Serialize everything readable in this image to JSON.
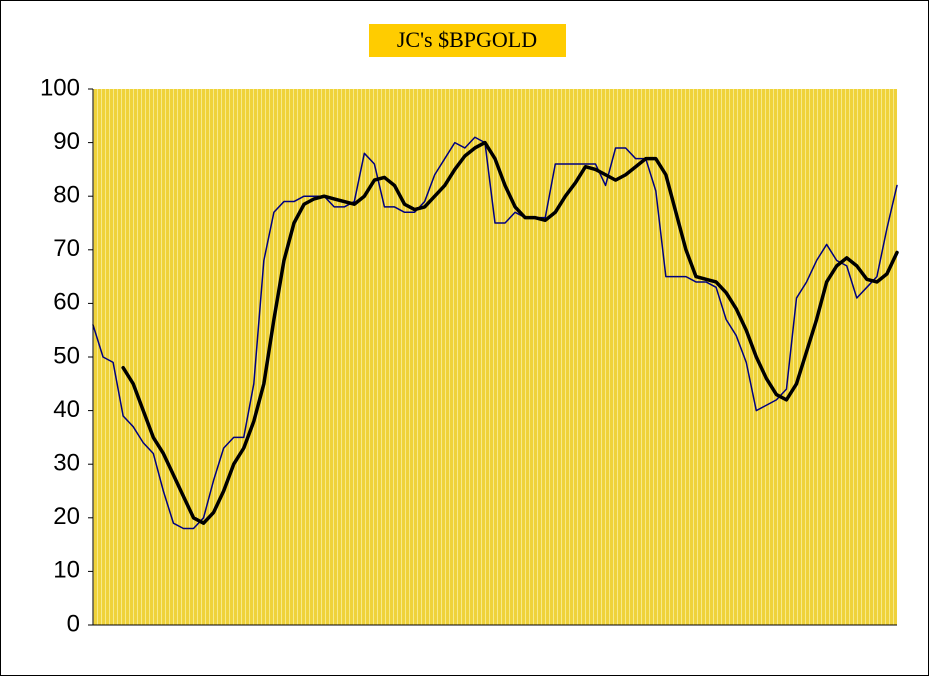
{
  "chart_data": {
    "type": "line",
    "title": "JC's $BPGOLD",
    "series": [
      {
        "color": "#000080",
        "width": 1.5,
        "values": [
          56,
          50,
          49,
          39,
          37,
          34,
          32,
          25,
          19,
          18,
          18,
          20,
          27,
          33,
          35,
          35,
          45,
          68,
          77,
          79,
          79,
          80,
          80,
          80,
          78,
          78,
          79,
          88,
          86,
          78,
          78,
          77,
          77,
          79,
          84,
          87,
          90,
          89,
          91,
          90,
          75,
          75,
          77,
          76,
          76,
          76,
          86,
          86,
          86,
          86,
          86,
          82,
          89,
          89,
          87,
          87,
          81,
          65,
          65,
          65,
          64,
          64,
          63,
          57,
          54,
          49,
          40,
          41,
          42,
          44,
          61,
          64,
          68,
          71,
          68,
          67,
          61,
          63,
          65,
          74,
          82
        ]
      },
      {
        "color": "#000000",
        "width": 3.5,
        "values": [
          null,
          null,
          null,
          48,
          45,
          40,
          35,
          32,
          28,
          24,
          20,
          19,
          21,
          25,
          30,
          33,
          38,
          45,
          57,
          68,
          75,
          78.5,
          79.5,
          80,
          79.5,
          79,
          78.5,
          80,
          83,
          83.5,
          82,
          78.5,
          77.5,
          78,
          80,
          82,
          85,
          87.5,
          89,
          90,
          87,
          82,
          78,
          76,
          76,
          75.5,
          77,
          80,
          82.5,
          85.5,
          85,
          84,
          83,
          84,
          85.5,
          87,
          87,
          84,
          77,
          70,
          65,
          64.5,
          64,
          62,
          59,
          55,
          50,
          46,
          43,
          42,
          45,
          51,
          57,
          64,
          67,
          68.5,
          67,
          64.5,
          64,
          65.5,
          69.5
        ]
      }
    ],
    "ylim": [
      0,
      100
    ],
    "yticks": [
      0,
      10,
      20,
      30,
      40,
      50,
      60,
      70,
      80,
      90,
      100
    ],
    "grid": true
  }
}
